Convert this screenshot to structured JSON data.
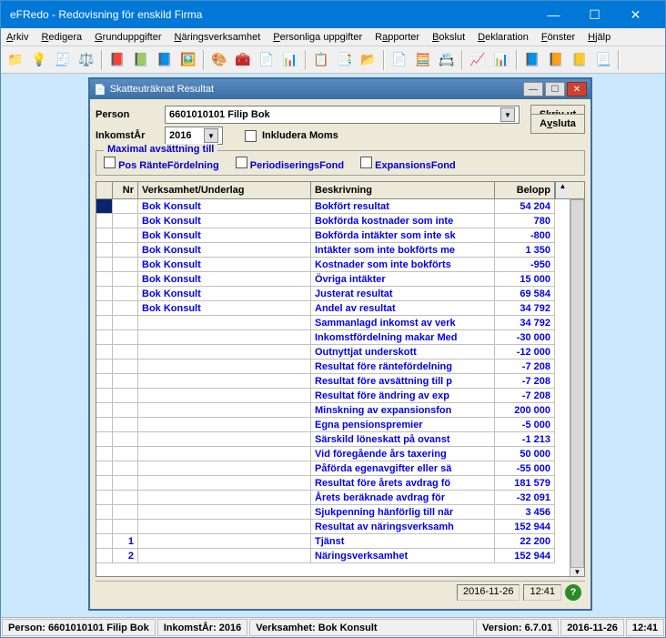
{
  "app": {
    "title": "eFRedo - Redovisning för enskild Firma"
  },
  "menu": {
    "items": [
      "Arkiv",
      "Redigera",
      "Grunduppgifter",
      "Näringsverksamhet",
      "Personliga uppgifter",
      "Rapporter",
      "Bokslut",
      "Deklaration",
      "Fönster",
      "Hjälp"
    ]
  },
  "toolbar": {
    "icons": [
      "📁",
      "💡",
      "🧾",
      "⚖️",
      "📕",
      "📗",
      "📘",
      "🖼️",
      "🎨",
      "🧰",
      "📄",
      "📊",
      "📋",
      "📑",
      "📂",
      "📄",
      "🧮",
      "📇",
      "📈",
      "📊",
      "📘",
      "📙",
      "📒",
      "📃"
    ]
  },
  "child": {
    "title": "Skatteuträknat Resultat",
    "person_label": "Person",
    "person_value": "6601010101    Filip Bok",
    "year_label": "InkomstÅr",
    "year_value": "2016",
    "include_moms_label": "Inkludera Moms",
    "btn_print": "Skriv ut",
    "btn_close": "Avsluta",
    "group_legend": "Maximal avsättning till",
    "opt1": "Pos RänteFördelning",
    "opt2": "PeriodiseringsFond",
    "opt3": "ExpansionsFond",
    "headers": {
      "nr": "Nr",
      "vk": "Verksamhet/Underlag",
      "bes": "Beskrivning",
      "bel": "Belopp"
    },
    "rows": [
      {
        "nr": "",
        "vk": "Bok Konsult",
        "bes": "Bokfört resultat",
        "bel": "54 204",
        "active": true
      },
      {
        "nr": "",
        "vk": "Bok Konsult",
        "bes": "Bokförda kostnader som inte",
        "bel": "780"
      },
      {
        "nr": "",
        "vk": "Bok Konsult",
        "bes": "Bokförda intäkter som inte sk",
        "bel": "-800"
      },
      {
        "nr": "",
        "vk": "Bok Konsult",
        "bes": "Intäkter som inte bokförts me",
        "bel": "1 350"
      },
      {
        "nr": "",
        "vk": "Bok Konsult",
        "bes": "Kostnader som inte bokförts",
        "bel": "-950"
      },
      {
        "nr": "",
        "vk": "Bok Konsult",
        "bes": "Övriga intäkter",
        "bel": "15 000"
      },
      {
        "nr": "",
        "vk": "Bok Konsult",
        "bes": "Justerat resultat",
        "bel": "69 584"
      },
      {
        "nr": "",
        "vk": "Bok Konsult",
        "bes": "Andel av resultat",
        "bel": "34 792"
      },
      {
        "nr": "",
        "vk": "",
        "bes": "Sammanlagd inkomst av verk",
        "bel": "34 792"
      },
      {
        "nr": "",
        "vk": "",
        "bes": "Inkomstfördelning makar Med",
        "bel": "-30 000"
      },
      {
        "nr": "",
        "vk": "",
        "bes": "Outnyttjat underskott",
        "bel": "-12 000"
      },
      {
        "nr": "",
        "vk": "",
        "bes": "Resultat före räntefördelning",
        "bel": "-7 208"
      },
      {
        "nr": "",
        "vk": "",
        "bes": "Resultat före avsättning till p",
        "bel": "-7 208"
      },
      {
        "nr": "",
        "vk": "",
        "bes": "Resultat före ändring av exp",
        "bel": "-7 208"
      },
      {
        "nr": "",
        "vk": "",
        "bes": "Minskning av expansionsfon",
        "bel": "200 000"
      },
      {
        "nr": "",
        "vk": "",
        "bes": "Egna pensionspremier",
        "bel": "-5 000"
      },
      {
        "nr": "",
        "vk": "",
        "bes": "Särskild löneskatt på ovanst",
        "bel": "-1 213"
      },
      {
        "nr": "",
        "vk": "",
        "bes": "Vid föregående års taxering",
        "bel": "50 000"
      },
      {
        "nr": "",
        "vk": "",
        "bes": "Påförda egenavgifter eller sä",
        "bel": "-55 000"
      },
      {
        "nr": "",
        "vk": "",
        "bes": "Resultat före årets avdrag fö",
        "bel": "181 579"
      },
      {
        "nr": "",
        "vk": "",
        "bes": "Årets beräknade avdrag för",
        "bel": "-32 091"
      },
      {
        "nr": "",
        "vk": "",
        "bes": "Sjukpenning hänförlig till när",
        "bel": "3 456"
      },
      {
        "nr": "",
        "vk": "",
        "bes": "Resultat av näringsverksamh",
        "bel": "152 944"
      },
      {
        "nr": "1",
        "vk": "",
        "bes": "Tjänst",
        "bel": "22 200"
      },
      {
        "nr": "2",
        "vk": "",
        "bes": "Näringsverksamhet",
        "bel": "152 944"
      }
    ],
    "status_date": "2016-11-26",
    "status_time": "12:41"
  },
  "status": {
    "person": "Person: 6601010101  Filip Bok",
    "year": "InkomstÅr: 2016",
    "vk": "Verksamhet: Bok Konsult",
    "version": "Version: 6.7.01",
    "date": "2016-11-26",
    "time": "12:41"
  }
}
